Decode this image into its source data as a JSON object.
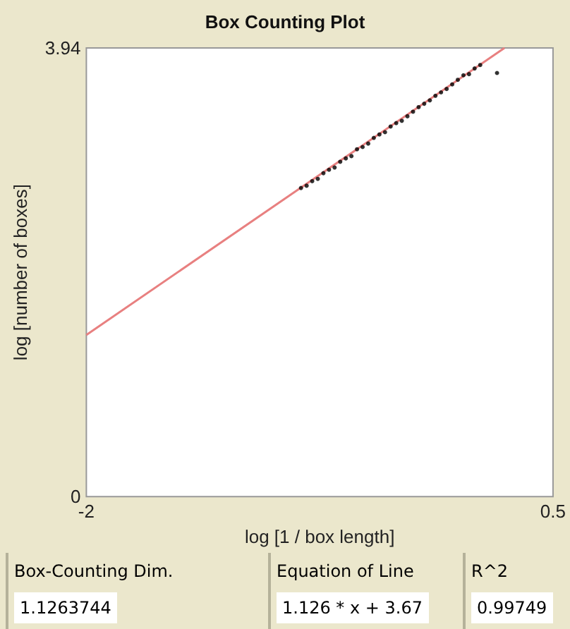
{
  "chart_data": {
    "type": "scatter",
    "title": "Box Counting Plot",
    "xlabel": "log [1 / box length]",
    "ylabel": "log [number of boxes]",
    "xlim": [
      -2,
      0.5
    ],
    "ylim": [
      0,
      3.94
    ],
    "xticks": [
      -2,
      0.5
    ],
    "yticks": [
      0,
      3.94
    ],
    "grid": false,
    "series": [
      {
        "marker": "circle",
        "color": "#000000",
        "x": [
          -0.85,
          -0.82,
          -0.79,
          -0.76,
          -0.73,
          -0.7,
          -0.67,
          -0.64,
          -0.61,
          -0.58,
          -0.55,
          -0.52,
          -0.49,
          -0.46,
          -0.43,
          -0.4,
          -0.37,
          -0.34,
          -0.31,
          -0.28,
          -0.25,
          -0.22,
          -0.19,
          -0.16,
          -0.13,
          -0.1,
          -0.07,
          -0.04,
          -0.01,
          0.02,
          0.05,
          0.08,
          0.11,
          0.2
        ],
        "values": [
          2.71,
          2.73,
          2.77,
          2.79,
          2.84,
          2.87,
          2.89,
          2.94,
          2.97,
          2.99,
          3.05,
          3.07,
          3.1,
          3.15,
          3.18,
          3.2,
          3.25,
          3.28,
          3.3,
          3.34,
          3.38,
          3.42,
          3.45,
          3.48,
          3.52,
          3.55,
          3.58,
          3.62,
          3.66,
          3.7,
          3.71,
          3.76,
          3.79,
          3.72
        ]
      },
      {
        "type": "line",
        "color": "#e88080",
        "line_style": "solid",
        "x": [
          -2,
          0.24
        ],
        "values": [
          1.42,
          3.94
        ]
      }
    ],
    "annotations": [
      "Box-Counting Dim.",
      "1.1263744",
      "Equation of Line",
      "1.126 * x + 3.67",
      "R^2",
      "0.99749"
    ]
  }
}
